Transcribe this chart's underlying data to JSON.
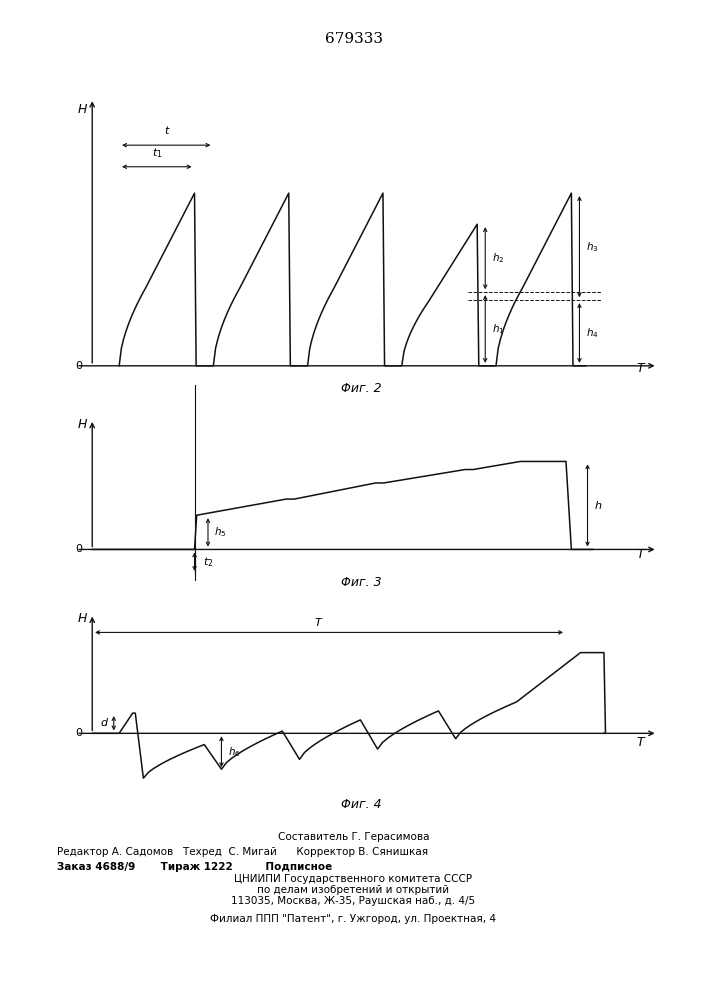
{
  "title": "679333",
  "line_color": "#111111",
  "fig2_label": "Φиг. 2",
  "fig3_label": "Φиг. 3",
  "fig4_label": "Φиг. 4",
  "footer_lines": [
    "Составитель Г. Герасимова",
    "Редактор А. Садомов   Техред  С. Мигай      Корректор В. Сянишкая",
    "Заказ 4688/9       Тираж 1222         Подписное",
    "ЦНИИПИ Государственного комитета СССР",
    "по делам изобретений и открытий",
    "113035, Москва, Ж-35, Раушская наб., д. 4/5",
    "Филиал ППП \"Патент\", г. Ужгород, ул. Проектная, 4"
  ]
}
